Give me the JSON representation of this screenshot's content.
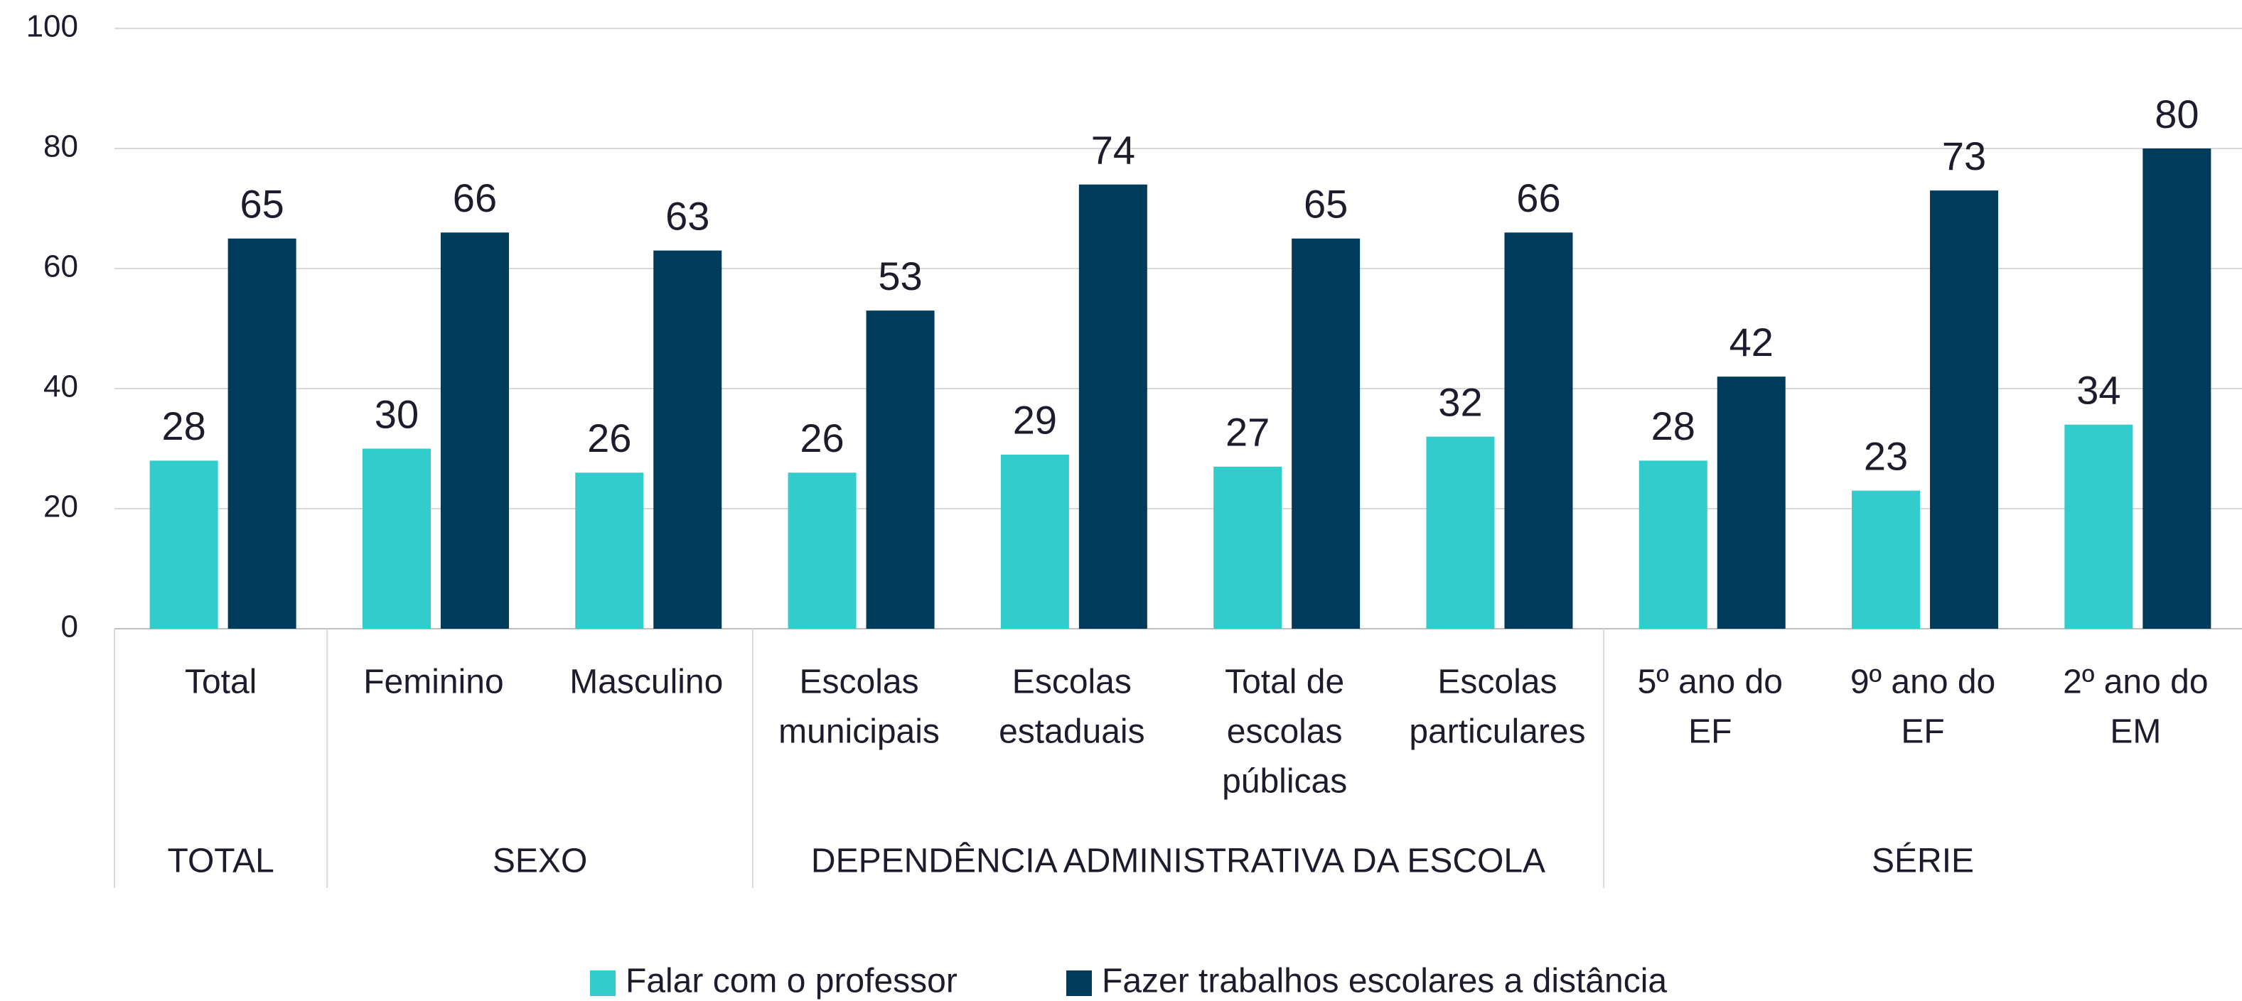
{
  "chart_data": {
    "type": "bar",
    "categories": [
      [
        "Total"
      ],
      [
        "Feminino"
      ],
      [
        "Masculino"
      ],
      [
        "Escolas",
        "municipais"
      ],
      [
        "Escolas",
        "estaduais"
      ],
      [
        "Total de",
        "escolas",
        "públicas"
      ],
      [
        "Escolas",
        "particulares"
      ],
      [
        "5º  ano do",
        "EF"
      ],
      [
        "9º  ano do",
        "EF"
      ],
      [
        "2º ano do",
        "EM"
      ]
    ],
    "groups": [
      {
        "label": "TOTAL",
        "span": 1
      },
      {
        "label": "SEXO",
        "span": 2
      },
      {
        "label": "DEPENDÊNCIA ADMINISTRATIVA DA ESCOLA",
        "span": 4
      },
      {
        "label": "SÉRIE",
        "span": 3
      }
    ],
    "series": [
      {
        "name": "Falar com o professor",
        "color": "#33cccc",
        "values": [
          28,
          30,
          26,
          26,
          29,
          27,
          32,
          28,
          23,
          34
        ]
      },
      {
        "name": "Fazer trabalhos escolares a distância",
        "color": "#003b5c",
        "values": [
          65,
          66,
          63,
          53,
          74,
          65,
          66,
          42,
          73,
          80
        ]
      }
    ],
    "ylim": [
      0,
      100
    ],
    "yticks": [
      0,
      20,
      40,
      60,
      80,
      100
    ],
    "grid": true,
    "legend": "bottom"
  }
}
